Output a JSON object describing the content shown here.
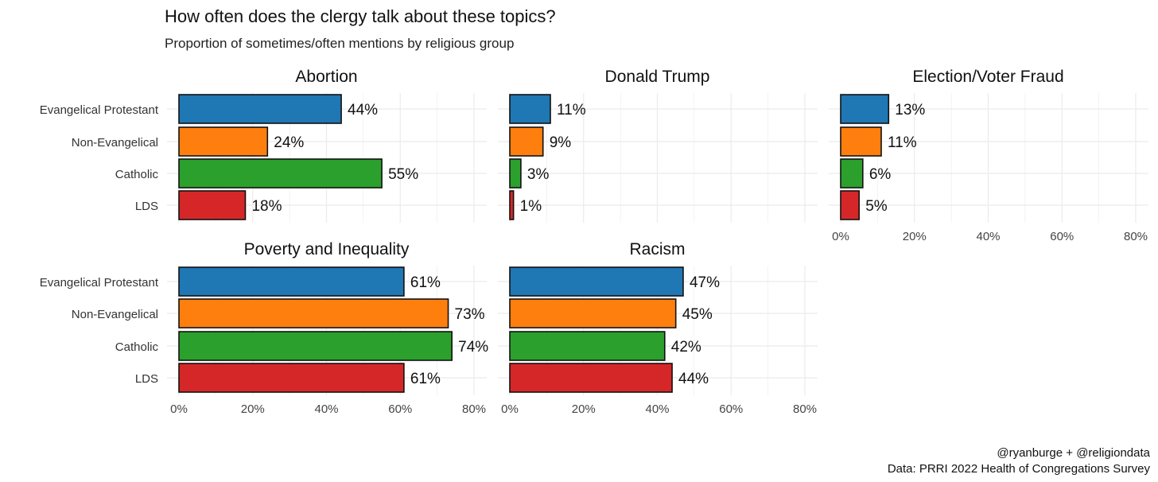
{
  "chart_data": {
    "type": "bar",
    "orientation": "horizontal",
    "title": "How often does the clergy talk about these topics?",
    "subtitle": "Proportion of sometimes/often mentions by religious group",
    "caption": [
      "@ryanburge + @religiondata",
      "Data: PRRI 2022 Health of Congregations Survey"
    ],
    "categories": [
      "Evangelical Protestant",
      "Non-Evangelical",
      "Catholic",
      "LDS"
    ],
    "colors": [
      "#1f77b4",
      "#ff7f0e",
      "#2ca02c",
      "#d62728"
    ],
    "xlim": [
      0,
      80
    ],
    "xticks": [
      0,
      20,
      40,
      60,
      80
    ],
    "xtick_labels": [
      "0%",
      "20%",
      "40%",
      "60%",
      "80%"
    ],
    "grid": true,
    "facets": [
      {
        "name": "Abortion",
        "values": [
          44,
          24,
          55,
          18
        ],
        "labels": [
          "44%",
          "24%",
          "55%",
          "18%"
        ]
      },
      {
        "name": "Donald Trump",
        "values": [
          11,
          9,
          3,
          1
        ],
        "labels": [
          "11%",
          "9%",
          "3%",
          "1%"
        ]
      },
      {
        "name": "Election/Voter Fraud",
        "values": [
          13,
          11,
          6,
          5
        ],
        "labels": [
          "13%",
          "11%",
          "6%",
          "5%"
        ]
      },
      {
        "name": "Poverty and Inequality",
        "values": [
          61,
          73,
          74,
          61
        ],
        "labels": [
          "61%",
          "73%",
          "74%",
          "61%"
        ]
      },
      {
        "name": "Racism",
        "values": [
          47,
          45,
          42,
          44
        ],
        "labels": [
          "47%",
          "45%",
          "42%",
          "44%"
        ]
      }
    ]
  }
}
